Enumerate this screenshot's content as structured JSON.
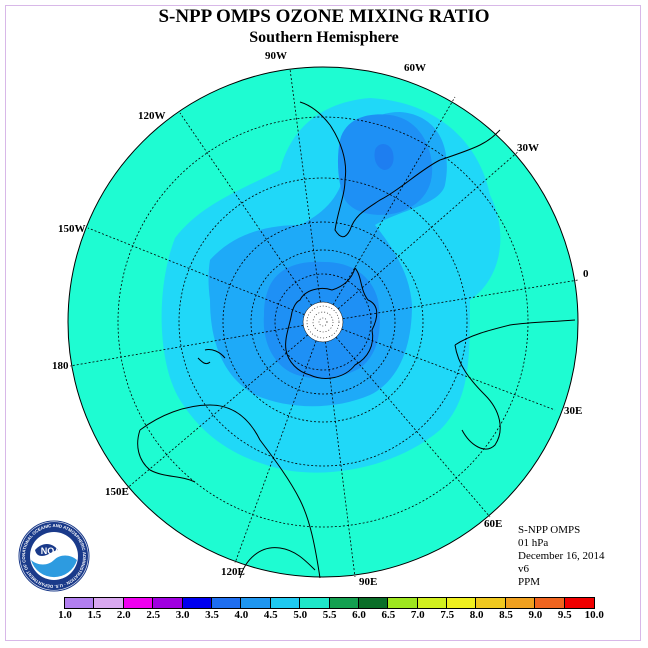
{
  "title": "S-NPP OMPS OZONE MIXING RATIO",
  "subtitle": "Southern Hemisphere",
  "longitude_labels": [
    {
      "text": "90W"
    },
    {
      "text": "60W"
    },
    {
      "text": "120W"
    },
    {
      "text": "30W"
    },
    {
      "text": "150W"
    },
    {
      "text": "0"
    },
    {
      "text": "180"
    },
    {
      "text": "30E"
    },
    {
      "text": "150E"
    },
    {
      "text": "60E"
    },
    {
      "text": "120E"
    },
    {
      "text": "90E"
    }
  ],
  "info": {
    "instrument": "S-NPP OMPS",
    "level": "01 hPa",
    "date": "December 16, 2014",
    "version": "v6",
    "units": "PPM"
  },
  "logo_text": "NOAA",
  "logo_ring_text": "NATIONAL OCEANIC AND ATMOSPHERIC ADMINISTRATION · U.S. DEPARTMENT OF COMMERCE",
  "colorbar": {
    "ticks": [
      "1.0",
      "1.5",
      "2.0",
      "2.5",
      "3.0",
      "3.5",
      "4.0",
      "4.5",
      "5.0",
      "5.5",
      "6.0",
      "6.5",
      "7.0",
      "7.5",
      "8.0",
      "8.5",
      "9.0",
      "9.5",
      "10.0"
    ],
    "colors": [
      "#b27ff0",
      "#d9a8f0",
      "#f000f0",
      "#a000e0",
      "#0000f0",
      "#1e6ef0",
      "#1e96f0",
      "#1ec8f0",
      "#1ee6c8",
      "#13a050",
      "#0a6e28",
      "#9ee61e",
      "#d2f01e",
      "#f0f01e",
      "#f0c81e",
      "#f0a01e",
      "#f0641e",
      "#f00000",
      "#8b5a3c"
    ]
  },
  "map_colors": {
    "outer": "#1efcd2",
    "band_4_0": "#20d8f8",
    "band_3_5": "#1eaaf8",
    "band_3_0": "#1e90f5",
    "pole": "#ffffff"
  }
}
